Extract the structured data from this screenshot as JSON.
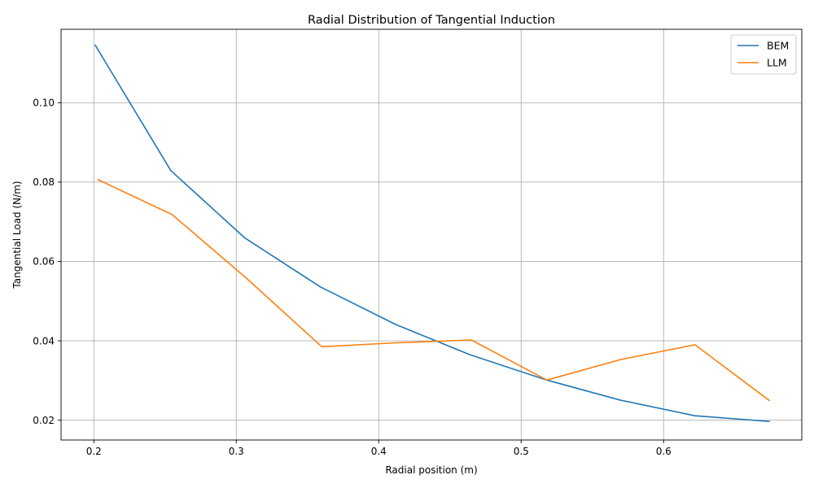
{
  "chart_data": {
    "type": "line",
    "title": "Radial Distribution of Tangential Induction",
    "xlabel": "Radial position (m)",
    "ylabel": "Tangential Load (N/m)",
    "xlim": [
      0.177,
      0.697
    ],
    "ylim": [
      0.015,
      0.1185
    ],
    "xticks": [
      {
        "value": 0.2,
        "label": "0.2"
      },
      {
        "value": 0.3,
        "label": "0.3"
      },
      {
        "value": 0.4,
        "label": "0.4"
      },
      {
        "value": 0.5,
        "label": "0.5"
      },
      {
        "value": 0.6,
        "label": "0.6"
      }
    ],
    "yticks": [
      {
        "value": 0.02,
        "label": "0.02"
      },
      {
        "value": 0.04,
        "label": "0.04"
      },
      {
        "value": 0.06,
        "label": "0.06"
      },
      {
        "value": 0.08,
        "label": "0.08"
      },
      {
        "value": 0.1,
        "label": "0.10"
      }
    ],
    "grid": true,
    "legend_position": "top-right",
    "series": [
      {
        "name": "BEM",
        "color": "#1f77b4",
        "x": [
          0.201,
          0.254,
          0.306,
          0.359,
          0.412,
          0.464,
          0.517,
          0.569,
          0.622,
          0.674
        ],
        "y": [
          0.1145,
          0.0829,
          0.0659,
          0.0536,
          0.0441,
          0.0365,
          0.0302,
          0.0251,
          0.0211,
          0.0197
        ]
      },
      {
        "name": "LLM",
        "color": "#ff7f0e",
        "x": [
          0.203,
          0.255,
          0.307,
          0.36,
          0.412,
          0.465,
          0.518,
          0.57,
          0.622,
          0.674
        ],
        "y": [
          0.0806,
          0.0718,
          0.0558,
          0.0385,
          0.0395,
          0.0402,
          0.0301,
          0.0353,
          0.039,
          0.025
        ]
      }
    ]
  }
}
